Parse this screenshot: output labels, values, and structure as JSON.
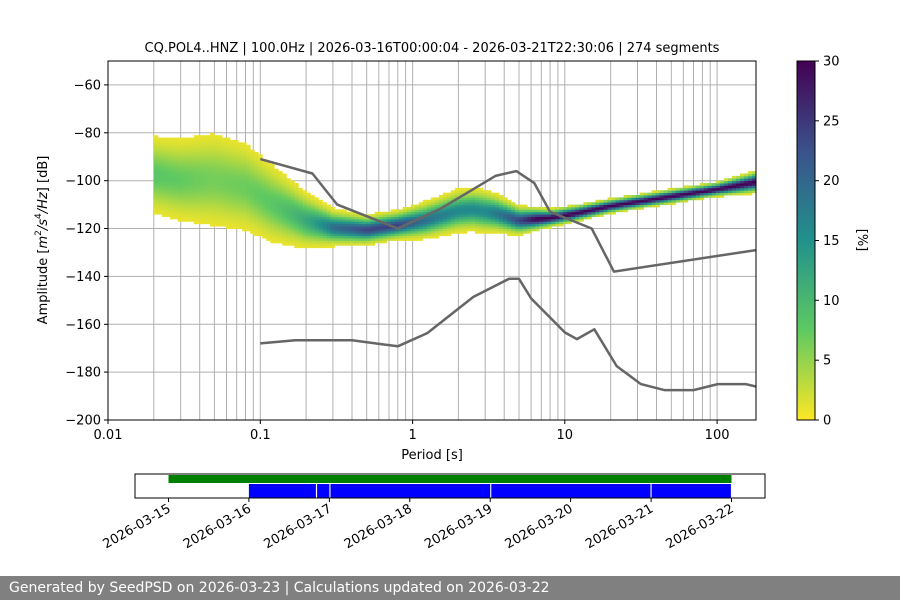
{
  "chart_data": [
    {
      "type": "heatmap",
      "title": "CQ.POL4..HNZ | 100.0Hz | 2026-03-16T00:00:04 - 2026-03-21T22:30:06 | 274 segments",
      "xlabel": "Period [s]",
      "ylabel_parts": [
        "Amplitude [",
        "m",
        "2",
        "/",
        "s",
        "4",
        "/",
        "Hz",
        "] [dB]"
      ],
      "x_scale": "log",
      "xlim": [
        0.01,
        180
      ],
      "ylim": [
        -200,
        -50
      ],
      "x_ticks": [
        {
          "v": 0.01,
          "label": "0.01"
        },
        {
          "v": 0.1,
          "label": "0.1"
        },
        {
          "v": 1,
          "label": "1"
        },
        {
          "v": 10,
          "label": "10"
        },
        {
          "v": 100,
          "label": "100"
        }
      ],
      "y_ticks": [
        {
          "v": -60,
          "label": "−60"
        },
        {
          "v": -80,
          "label": "−80"
        },
        {
          "v": -100,
          "label": "−100"
        },
        {
          "v": -120,
          "label": "−120"
        },
        {
          "v": -140,
          "label": "−140"
        },
        {
          "v": -160,
          "label": "−160"
        },
        {
          "v": -180,
          "label": "−180"
        },
        {
          "v": -200,
          "label": "−200"
        }
      ],
      "grid": true,
      "colorbar": {
        "label": "[%]",
        "range": [
          0,
          30
        ],
        "ticks": [
          {
            "v": 0,
            "label": "0"
          },
          {
            "v": 5,
            "label": "5"
          },
          {
            "v": 10,
            "label": "10"
          },
          {
            "v": 15,
            "label": "15"
          },
          {
            "v": 20,
            "label": "20"
          },
          {
            "v": 25,
            "label": "25"
          },
          {
            "v": 30,
            "label": "30"
          }
        ],
        "colors": [
          "#fde725",
          "#5ec962",
          "#21918c",
          "#3b528b",
          "#440154"
        ]
      },
      "noise_models": [
        {
          "points": [
            [
              0.1,
              -91
            ],
            [
              0.22,
              -97
            ],
            [
              0.32,
              -110
            ],
            [
              0.8,
              -120
            ],
            [
              1.5,
              -112
            ],
            [
              3.5,
              -98
            ],
            [
              4.8,
              -96
            ],
            [
              6.3,
              -101
            ],
            [
              8,
              -113
            ],
            [
              15,
              -120
            ],
            [
              21,
              -138
            ],
            [
              180,
              -129
            ]
          ]
        },
        {
          "points": [
            [
              0.1,
              -168
            ],
            [
              0.17,
              -166.7
            ],
            [
              0.4,
              -166.7
            ],
            [
              0.8,
              -169.2
            ],
            [
              1.25,
              -163.7
            ],
            [
              2.5,
              -148.6
            ],
            [
              4.3,
              -141
            ],
            [
              5,
              -141
            ],
            [
              6,
              -149.2
            ],
            [
              10,
              -163.4
            ],
            [
              12,
              -166.2
            ],
            [
              15.6,
              -162.1
            ],
            [
              21.9,
              -177.5
            ],
            [
              31.6,
              -185
            ],
            [
              45,
              -187.5
            ],
            [
              70,
              -187.5
            ],
            [
              101,
              -185
            ],
            [
              154,
              -185
            ],
            [
              180,
              -186
            ]
          ]
        }
      ],
      "psd_mode": [
        [
          0.02,
          -98
        ],
        [
          0.03,
          -100
        ],
        [
          0.05,
          -100
        ],
        [
          0.08,
          -103
        ],
        [
          0.12,
          -110
        ],
        [
          0.2,
          -117
        ],
        [
          0.3,
          -120
        ],
        [
          0.5,
          -121
        ],
        [
          0.8,
          -119
        ],
        [
          1.2,
          -117
        ],
        [
          2,
          -113
        ],
        [
          2.5,
          -112.5
        ],
        [
          3.5,
          -114
        ],
        [
          5,
          -117
        ],
        [
          8,
          -116
        ],
        [
          12,
          -114
        ],
        [
          20,
          -111
        ],
        [
          50,
          -107
        ],
        [
          100,
          -104
        ],
        [
          180,
          -101
        ]
      ],
      "psd_spread": [
        [
          0.02,
          12
        ],
        [
          0.03,
          13
        ],
        [
          0.05,
          15
        ],
        [
          0.08,
          14
        ],
        [
          0.12,
          12
        ],
        [
          0.2,
          8
        ],
        [
          0.3,
          5
        ],
        [
          0.5,
          4
        ],
        [
          0.8,
          4
        ],
        [
          1.2,
          5
        ],
        [
          2,
          6
        ],
        [
          3,
          6
        ],
        [
          5,
          4
        ],
        [
          8,
          2.5
        ],
        [
          20,
          2
        ],
        [
          100,
          2
        ],
        [
          180,
          3
        ]
      ]
    },
    {
      "type": "timeline",
      "x_ticks": [
        "2026-03-15",
        "2026-03-16",
        "2026-03-17",
        "2026-03-18",
        "2026-03-19",
        "2026-03-20",
        "2026-03-21",
        "2026-03-22"
      ],
      "xlim": [
        "2026-03-14T14:00",
        "2026-03-22T10:00"
      ],
      "data_available": [
        [
          "2026-03-15T00:00",
          "2026-03-22T00:00"
        ]
      ],
      "psd_segments": [
        [
          "2026-03-16T00:00",
          "2026-03-16T20:00"
        ],
        [
          "2026-03-16T20:20",
          "2026-03-17T00:00"
        ],
        [
          "2026-03-17T00:20",
          "2026-03-19T00:00"
        ],
        [
          "2026-03-19T00:20",
          "2026-03-20T23:50"
        ],
        [
          "2026-03-21T00:10",
          "2026-03-21T00:00"
        ],
        [
          "2026-03-21T00:10",
          "2026-03-21T23:50"
        ]
      ],
      "colors": {
        "available": "#008000",
        "segments": "#0000ff"
      }
    }
  ],
  "footer": {
    "text": "Generated by SeedPSD on 2026-03-23 | Calculations updated on 2026-03-22"
  }
}
